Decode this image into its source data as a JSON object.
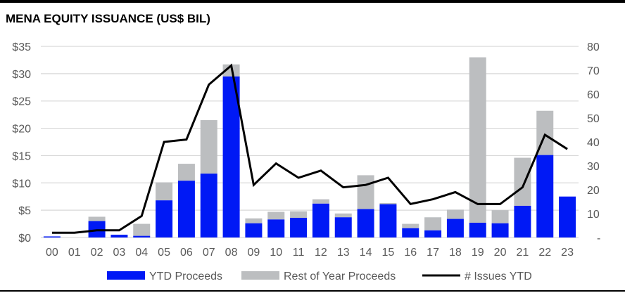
{
  "chart_data": {
    "type": "bar",
    "title": "MENA EQUITY ISSUANCE (US$ BIL)",
    "categories": [
      "00",
      "01",
      "02",
      "03",
      "04",
      "05",
      "06",
      "07",
      "08",
      "09",
      "10",
      "11",
      "12",
      "13",
      "14",
      "15",
      "16",
      "17",
      "18",
      "19",
      "20",
      "21",
      "22",
      "23"
    ],
    "series": [
      {
        "name": "YTD Proceeds",
        "type": "bar-stacked",
        "axis": "left",
        "color": "#0019f5",
        "values": [
          0.2,
          0,
          3.0,
          0.5,
          0.3,
          6.8,
          10.4,
          11.7,
          29.5,
          2.6,
          3.3,
          3.6,
          6.2,
          3.7,
          5.2,
          6.1,
          1.7,
          1.3,
          3.4,
          2.7,
          2.6,
          5.8,
          15.1,
          7.5
        ]
      },
      {
        "name": "Rest of Year Proceeds",
        "type": "bar-stacked",
        "axis": "left",
        "color": "#bcbec0",
        "values": [
          0,
          0,
          0.8,
          0,
          2.2,
          3.3,
          3.1,
          9.8,
          2.2,
          0.9,
          1.4,
          1.2,
          0.8,
          0.7,
          6.2,
          0.2,
          0.8,
          2.4,
          1.7,
          30.3,
          2.4,
          8.8,
          8.1,
          0
        ]
      },
      {
        "name": "# Issues YTD",
        "type": "line",
        "axis": "right",
        "color": "#000000",
        "values": [
          2,
          2,
          3,
          3,
          9,
          40,
          41,
          64,
          72,
          22,
          31,
          25,
          28,
          21,
          22,
          25,
          14,
          16,
          19,
          14,
          14,
          21,
          43,
          37
        ]
      }
    ],
    "left_axis": {
      "ylim": [
        0,
        35
      ],
      "ticks": [
        "$0",
        "$5",
        "$10",
        "$15",
        "$20",
        "$25",
        "$30",
        "$35"
      ]
    },
    "right_axis": {
      "ylim": [
        0,
        80
      ],
      "ticks": [
        "-",
        "10",
        "20",
        "30",
        "40",
        "50",
        "60",
        "70",
        "80"
      ]
    },
    "grid": true,
    "legend_position": "bottom"
  }
}
